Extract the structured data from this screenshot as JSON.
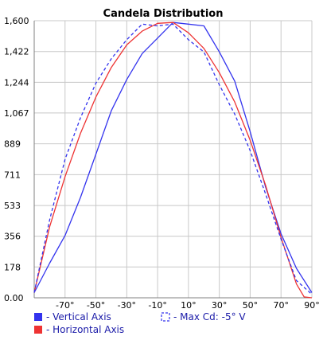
{
  "chart_data": {
    "type": "line",
    "title": "Candela Distribution",
    "xlabel": "",
    "ylabel": "",
    "xlim": [
      -90,
      90
    ],
    "ylim": [
      0,
      1600
    ],
    "grid": true,
    "x_ticks": [
      -70,
      -50,
      -30,
      -10,
      10,
      30,
      50,
      70,
      90
    ],
    "x_tick_labels": [
      "-70°",
      "-50°",
      "-30°",
      "-10°",
      "10°",
      "30°",
      "50°",
      "70°",
      "90°"
    ],
    "y_ticks": [
      0,
      178,
      356,
      533,
      711,
      889,
      1067,
      1244,
      1422,
      1600
    ],
    "y_tick_labels": [
      "0.00",
      "178",
      "356",
      "533",
      "711",
      "889",
      "1,067",
      "1,244",
      "1,422",
      "1,600"
    ],
    "legend_position": "bottom",
    "series": [
      {
        "name": "- Vertical Axis",
        "color": "#3333ee",
        "style": "solid",
        "x": [
          -90,
          -80,
          -70,
          -60,
          -50,
          -40,
          -30,
          -20,
          -10,
          0,
          10,
          20,
          30,
          40,
          50,
          60,
          70,
          80,
          90
        ],
        "y": [
          30,
          200,
          360,
          580,
          830,
          1080,
          1260,
          1410,
          1500,
          1590,
          1580,
          1570,
          1420,
          1250,
          960,
          640,
          370,
          170,
          30
        ]
      },
      {
        "name": "- Horizontal Axis",
        "color": "#ee3333",
        "style": "solid",
        "x": [
          -90,
          -80,
          -70,
          -60,
          -50,
          -40,
          -30,
          -20,
          -10,
          0,
          10,
          20,
          30,
          40,
          50,
          60,
          70,
          80,
          85,
          90
        ],
        "y": [
          30,
          410,
          700,
          950,
          1160,
          1330,
          1460,
          1540,
          1585,
          1590,
          1530,
          1440,
          1300,
          1130,
          910,
          650,
          350,
          80,
          5,
          0
        ]
      },
      {
        "name": "- Max Cd: -5° V",
        "color": "#3333ee",
        "style": "dashed",
        "x": [
          -90,
          -80,
          -70,
          -60,
          -50,
          -40,
          -30,
          -20,
          -10,
          0,
          10,
          20,
          30,
          40,
          50,
          60,
          70,
          80,
          90
        ],
        "y": [
          30,
          450,
          800,
          1040,
          1240,
          1380,
          1490,
          1580,
          1570,
          1580,
          1490,
          1420,
          1230,
          1060,
          850,
          600,
          340,
          100,
          20
        ]
      }
    ]
  }
}
